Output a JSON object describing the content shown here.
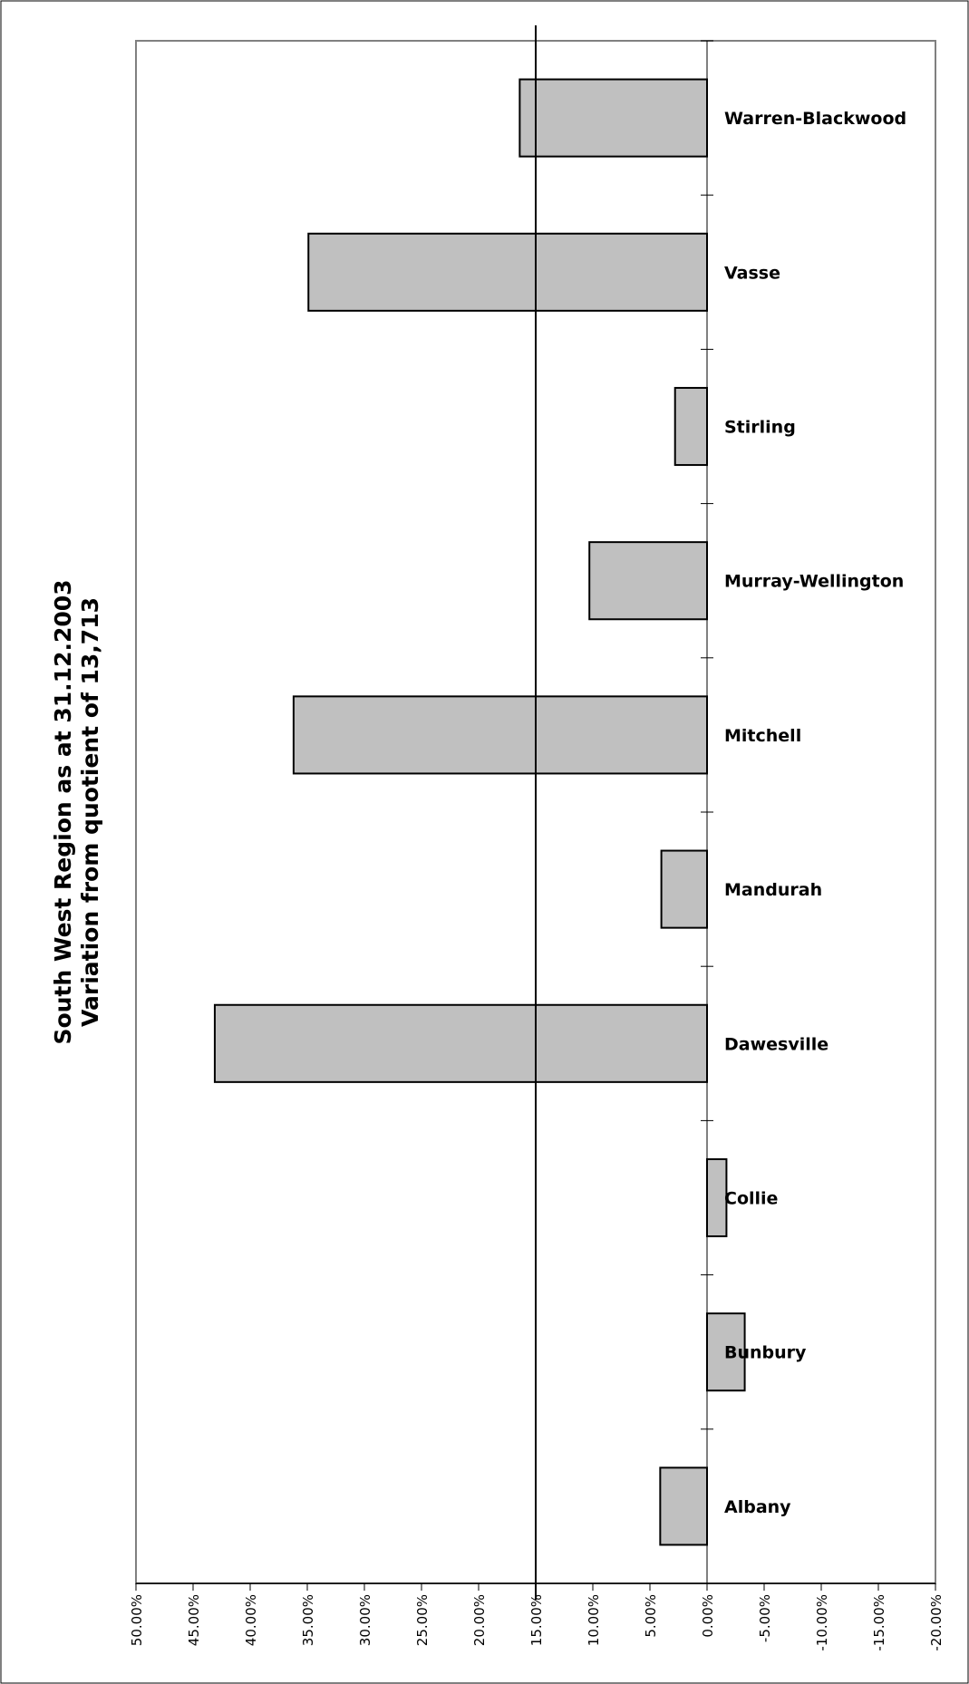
{
  "chart_data": {
    "type": "bar",
    "orientation": "horizontal",
    "title": "South West Region as at 31.12.2003",
    "subtitle": "Variation from quotient of 13,713",
    "categories": [
      "Warren-Blackwood",
      "Vasse",
      "Stirling",
      "Murray-Wellington",
      "Mitchell",
      "Mandurah",
      "Dawesville",
      "Collie",
      "Bunbury",
      "Albany"
    ],
    "values": [
      16.4,
      34.9,
      2.8,
      10.3,
      36.2,
      4.0,
      43.1,
      -1.7,
      -3.3,
      4.1
    ],
    "value_axis": {
      "range": [
        50,
        -20
      ],
      "reversed": true,
      "ticks": [
        50,
        45,
        40,
        35,
        30,
        25,
        20,
        15,
        10,
        5,
        0,
        -5,
        -10,
        -15,
        -20
      ],
      "tick_labels": [
        "50.00%",
        "45.00%",
        "40.00%",
        "35.00%",
        "30.00%",
        "25.00%",
        "20.00%",
        "15.00%",
        "10.00%",
        "5.00%",
        "0.00%",
        "-5.00%",
        "-10.00%",
        "-15.00%",
        "-20.00%"
      ]
    },
    "reference_line": 15,
    "grid": false,
    "bar_color": "#c0c0c0",
    "border_color": "#808080"
  }
}
